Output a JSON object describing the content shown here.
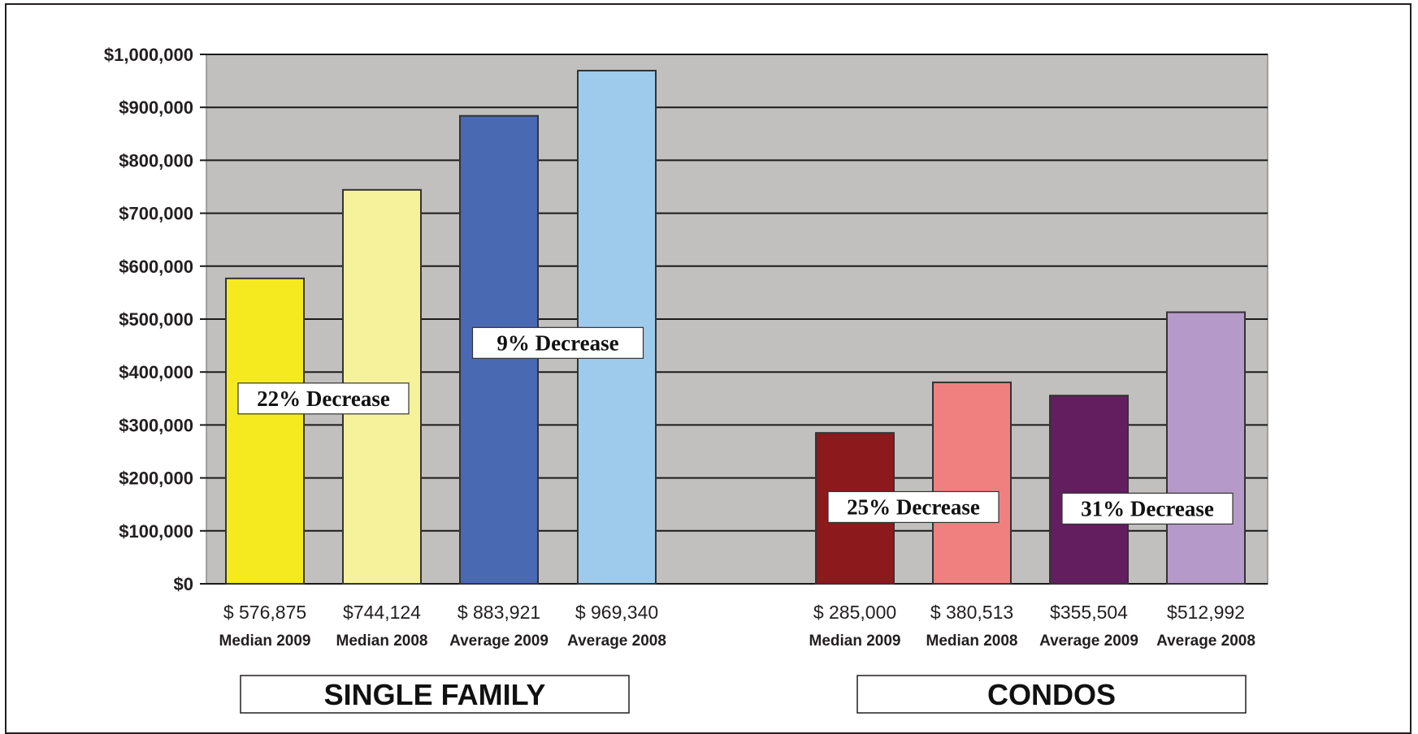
{
  "chart_data": {
    "type": "bar",
    "ylim": [
      0,
      1000000
    ],
    "y_ticks": [
      {
        "value": 0,
        "label": "$0"
      },
      {
        "value": 100000,
        "label": "$100,000"
      },
      {
        "value": 200000,
        "label": "$200,000"
      },
      {
        "value": 300000,
        "label": "$300,000"
      },
      {
        "value": 400000,
        "label": "$400,000"
      },
      {
        "value": 500000,
        "label": "$500,000"
      },
      {
        "value": 600000,
        "label": "$600,000"
      },
      {
        "value": 700000,
        "label": "$700,000"
      },
      {
        "value": 800000,
        "label": "$800,000"
      },
      {
        "value": 900000,
        "label": "$900,000"
      },
      {
        "value": 1000000,
        "label": "$1,000,000"
      }
    ],
    "grid": true,
    "plot_background": "#c1c0be",
    "groups": [
      {
        "name": "SINGLE FAMILY",
        "bars": [
          {
            "category": "Median 2009",
            "value": 576875,
            "value_label": "$ 576,875",
            "color": "#f4ea1f"
          },
          {
            "category": "Median 2008",
            "value": 744124,
            "value_label": "$744,124",
            "color": "#f6f29b"
          },
          {
            "category": "Average 2009",
            "value": 883921,
            "value_label": "$ 883,921",
            "color": "#4a69b3"
          },
          {
            "category": "Average 2008",
            "value": 969340,
            "value_label": "$ 969,340",
            "color": "#9ecbec"
          }
        ]
      },
      {
        "name": "CONDOS",
        "bars": [
          {
            "category": "Median 2009",
            "value": 285000,
            "value_label": "$ 285,000",
            "color": "#8c191b"
          },
          {
            "category": "Median 2008",
            "value": 380513,
            "value_label": "$ 380,513",
            "color": "#f08080"
          },
          {
            "category": "Average 2009",
            "value": 355504,
            "value_label": "$355,504",
            "color": "#621e5f"
          },
          {
            "category": "Average 2008",
            "value": 512992,
            "value_label": "$512,992",
            "color": "#b59ac9"
          }
        ]
      }
    ],
    "annotations": [
      {
        "text": "22% Decrease",
        "value": 350000,
        "group": 0,
        "between": [
          0,
          1
        ]
      },
      {
        "text": "9% Decrease",
        "value": 455000,
        "group": 0,
        "between": [
          2,
          3
        ]
      },
      {
        "text": "25% Decrease",
        "value": 145000,
        "group": 1,
        "between": [
          0,
          1
        ]
      },
      {
        "text": "31% Decrease",
        "value": 142000,
        "group": 1,
        "between": [
          2,
          3
        ]
      }
    ]
  }
}
